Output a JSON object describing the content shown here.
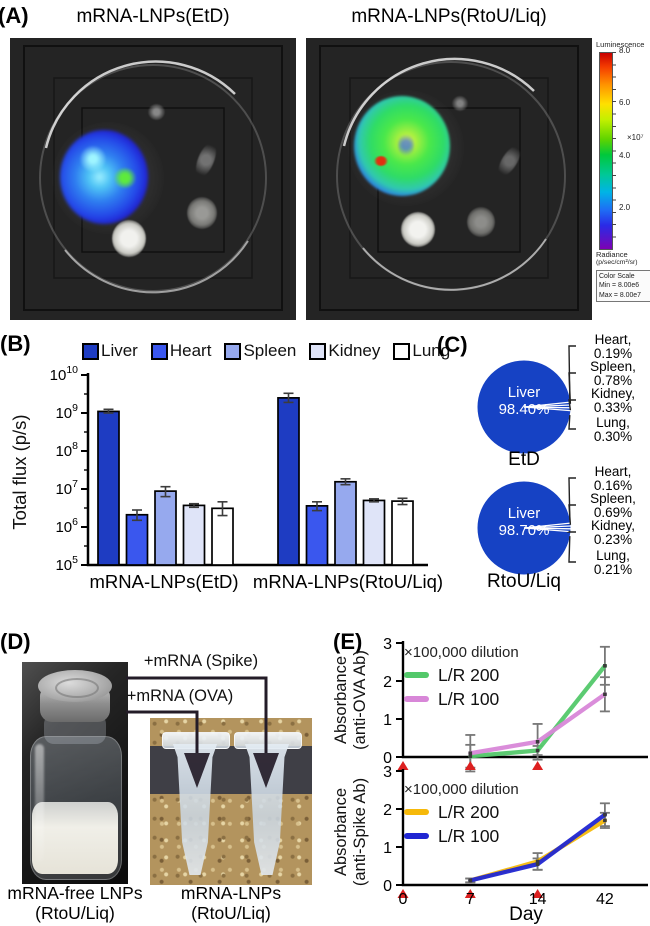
{
  "panels": {
    "a": {
      "label": "(A)",
      "left_title": "mRNA-LNPs(EtD)",
      "right_title": "mRNA-LNPs(RtoU/Liq)",
      "colorbar": {
        "title": "Luminescence",
        "ticks": [
          "8.0",
          "6.0",
          "4.0",
          "2.0"
        ],
        "multiplier": "×10⁷",
        "radiance_line1": "Radiance",
        "radiance_line2": "(p/sec/cm²/sr)",
        "box_line1": "Color Scale",
        "box_line2": "Min = 8.00e6",
        "box_line3": "Max = 8.00e7"
      }
    },
    "b": {
      "label": "(B)"
    },
    "c": {
      "label": "(C)"
    },
    "d": {
      "label": "(D)",
      "arrow_spike": "+mRNA (Spike)",
      "arrow_ova": "+mRNA (OVA)",
      "caption_left_line1": "mRNA-free LNPs",
      "caption_left_line2": "(RtoU/Liq)",
      "caption_right_line1": "mRNA-LNPs",
      "caption_right_line2": "(RtoU/Liq)"
    },
    "e": {
      "label": "(E)"
    }
  },
  "chart_data": [
    {
      "id": "panel-b-biodistribution",
      "type": "bar",
      "ylabel": "Total flux (p/s)",
      "yscale": "log",
      "ylim": [
        100000,
        10000000000
      ],
      "ytick_exponents": [
        5,
        6,
        7,
        8,
        9,
        10
      ],
      "categories": [
        "mRNA-LNPs(EtD)",
        "mRNA-LNPs(RtoU/Liq)"
      ],
      "series": [
        {
          "name": "Liver",
          "color": "#1e3cc2",
          "values": [
            1100000000.0,
            2500000000.0
          ],
          "err_lo": [
            1000000000.0,
            1900000000.0
          ],
          "err_hi": [
            1250000000.0,
            3300000000.0
          ]
        },
        {
          "name": "Heart",
          "color": "#3a57ee",
          "values": [
            2100000.0,
            3600000.0
          ],
          "err_lo": [
            1500000.0,
            2700000.0
          ],
          "err_hi": [
            2800000.0,
            4600000.0
          ]
        },
        {
          "name": "Spleen",
          "color": "#96a9ee",
          "values": [
            8800000.0,
            15500000.0
          ],
          "err_lo": [
            6300000.0,
            13000000.0
          ],
          "err_hi": [
            11500000.0,
            18500000.0
          ]
        },
        {
          "name": "Kidney",
          "color": "#dfe4f8",
          "values": [
            3700000.0,
            5000000.0
          ],
          "err_lo": [
            3300000.0,
            4600000.0
          ],
          "err_hi": [
            4100000.0,
            5500000.0
          ]
        },
        {
          "name": "Lung",
          "color": "#ffffff",
          "values": [
            3100000.0,
            4800000.0
          ],
          "err_lo": [
            2000000.0,
            3900000.0
          ],
          "err_hi": [
            4600000.0,
            5700000.0
          ]
        }
      ]
    },
    {
      "id": "panel-c-pie-etd",
      "type": "pie",
      "title": "EtD",
      "color": "#1642c4",
      "center_label_line1": "Liver",
      "center_label_line2": "98.40%",
      "slices": [
        {
          "label": "Liver",
          "value": 98.4
        },
        {
          "label": "Heart",
          "value": 0.19
        },
        {
          "label": "Spleen",
          "value": 0.78
        },
        {
          "label": "Kidney",
          "value": 0.33
        },
        {
          "label": "Lung",
          "value": 0.3
        }
      ]
    },
    {
      "id": "panel-c-pie-rtou-liq",
      "type": "pie",
      "title": "RtoU/Liq",
      "color": "#1642c4",
      "center_label_line1": "Liver",
      "center_label_line2": "98.70%",
      "slices": [
        {
          "label": "Liver",
          "value": 98.7
        },
        {
          "label": "Heart",
          "value": 0.16
        },
        {
          "label": "Spleen",
          "value": 0.69
        },
        {
          "label": "Kidney",
          "value": 0.23
        },
        {
          "label": "Lung",
          "value": 0.21
        }
      ]
    },
    {
      "id": "panel-e-anti-ova",
      "type": "line",
      "ylabel_line1": "Absorbance",
      "ylabel_line2": "(anti-OVA Ab)",
      "annotation": "×100,000 dilution",
      "xlabel": "Day",
      "xticks": [
        0,
        7,
        14,
        42
      ],
      "x": [
        7,
        14,
        42
      ],
      "ylim": [
        0,
        3
      ],
      "yticks": [
        0,
        1,
        2,
        3
      ],
      "injection_days": [
        0,
        7,
        14
      ],
      "marker_color": "#dd2020",
      "series": [
        {
          "name": "L/R 200",
          "color": "#53c86a",
          "values": [
            0.02,
            0.17,
            2.4
          ],
          "err": [
            0.3,
            0.12,
            0.5
          ]
        },
        {
          "name": "L/R 100",
          "color": "#d887d8",
          "values": [
            0.1,
            0.4,
            1.65
          ],
          "err": [
            0.48,
            0.47,
            0.45
          ]
        }
      ]
    },
    {
      "id": "panel-e-anti-spike",
      "type": "line",
      "ylabel_line1": "Absorbance",
      "ylabel_line2": "(anti-Spike Ab)",
      "annotation": "×100,000 dilution",
      "xlabel": "Day",
      "xticks": [
        0,
        7,
        14,
        42
      ],
      "x": [
        7,
        14,
        42
      ],
      "ylim": [
        0,
        3
      ],
      "yticks": [
        0,
        1,
        2,
        3
      ],
      "injection_days": [
        0,
        7,
        14
      ],
      "marker_color": "#dd2020",
      "series": [
        {
          "name": "L/R 200",
          "color": "#f6b90a",
          "values": [
            0.12,
            0.62,
            1.7
          ],
          "err": [
            0.05,
            0.22,
            0.2
          ]
        },
        {
          "name": "L/R 100",
          "color": "#2026d2",
          "values": [
            0.12,
            0.55,
            1.85
          ],
          "err": [
            0.05,
            0.15,
            0.3
          ]
        }
      ]
    }
  ]
}
